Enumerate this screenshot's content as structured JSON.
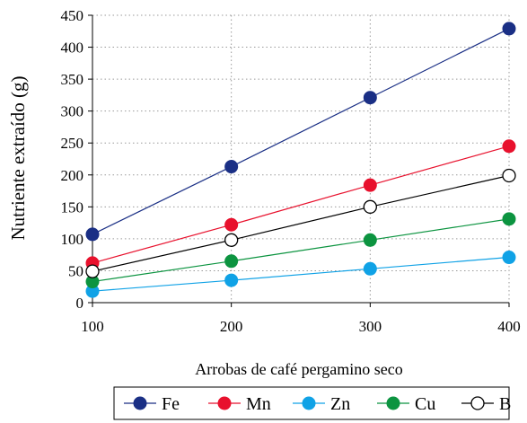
{
  "chart_data": {
    "type": "line",
    "xlabel": "Arrobas de café pergamino seco",
    "ylabel": "Nutriente extraído (g)",
    "x": [
      100,
      200,
      300,
      400
    ],
    "xlim": [
      100,
      400
    ],
    "ylim": [
      0,
      450
    ],
    "xticks": [
      "100",
      "200",
      "300",
      "400"
    ],
    "yticks": [
      "0",
      "50",
      "100",
      "150",
      "200",
      "250",
      "300",
      "350",
      "400",
      "450"
    ],
    "grid": true,
    "legend_position": "bottom",
    "series": [
      {
        "name": "Fe",
        "values": [
          107,
          213,
          321,
          429
        ],
        "color": "#1a2f85",
        "filled": true
      },
      {
        "name": "Mn",
        "values": [
          62,
          122,
          184,
          245
        ],
        "color": "#e8112d",
        "filled": true
      },
      {
        "name": "Zn",
        "values": [
          18,
          35,
          53,
          71
        ],
        "color": "#10a2e6",
        "filled": true
      },
      {
        "name": "Cu",
        "values": [
          33,
          65,
          98,
          131
        ],
        "color": "#0c9440",
        "filled": true
      },
      {
        "name": "B",
        "values": [
          49,
          98,
          150,
          199
        ],
        "color": "#000000",
        "filled": false
      }
    ]
  }
}
